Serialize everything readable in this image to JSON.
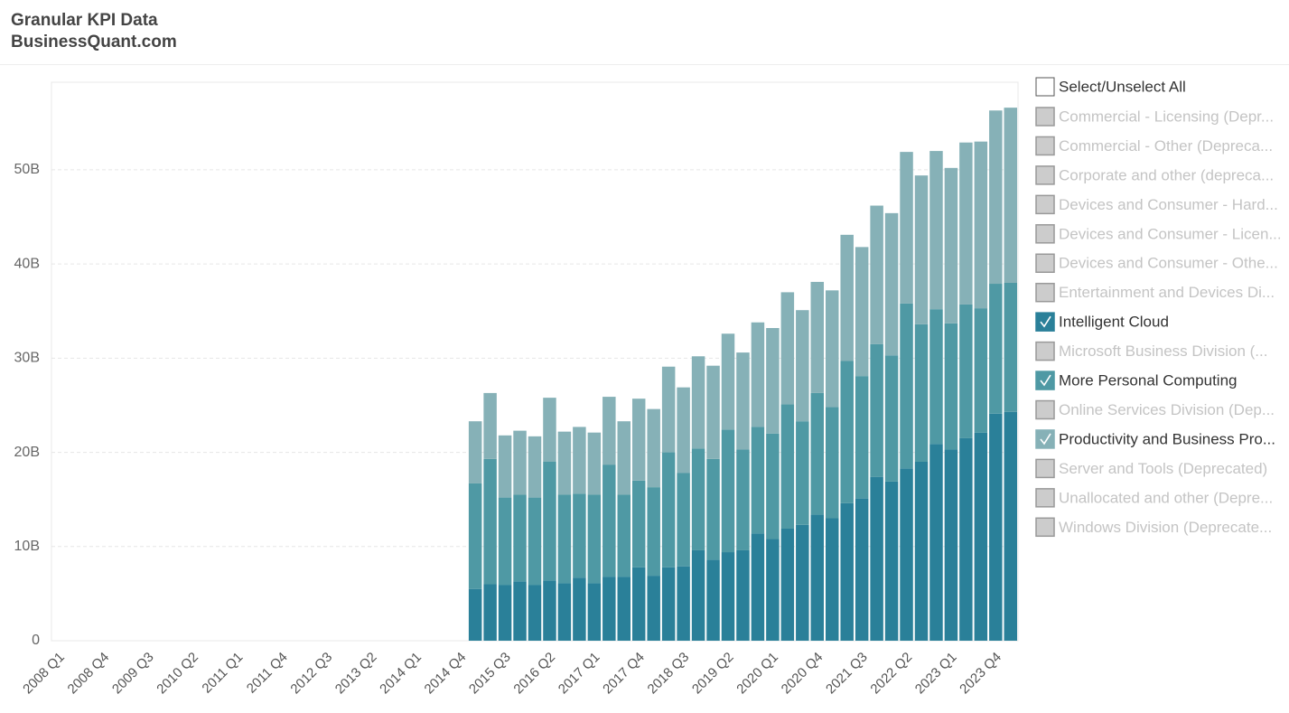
{
  "header": {
    "title": "Granular KPI Data",
    "subtitle": "BusinessQuant.com"
  },
  "filter_panel": {
    "select_all": "Select/Unselect All",
    "items": [
      {
        "label": "Commercial - Licensing (Depr...",
        "checked": false
      },
      {
        "label": "Commercial - Other (Depreca...",
        "checked": false
      },
      {
        "label": "Corporate and other (depreca...",
        "checked": false
      },
      {
        "label": "Devices and Consumer - Hard...",
        "checked": false
      },
      {
        "label": "Devices and Consumer - Licen...",
        "checked": false
      },
      {
        "label": "Devices and Consumer - Othe...",
        "checked": false
      },
      {
        "label": "Entertainment and Devices Di...",
        "checked": false
      },
      {
        "label": "Intelligent Cloud",
        "checked": true,
        "color": "#2a8099"
      },
      {
        "label": "Microsoft Business Division (...",
        "checked": false
      },
      {
        "label": "More Personal Computing",
        "checked": true,
        "color": "#4f99a4"
      },
      {
        "label": "Online Services Division (Dep...",
        "checked": false
      },
      {
        "label": "Productivity and Business Pro...",
        "checked": true,
        "color": "#86b1b7"
      },
      {
        "label": "Server and Tools (Deprecated)",
        "checked": false
      },
      {
        "label": "Unallocated and other (Depre...",
        "checked": false
      },
      {
        "label": "Windows Division (Deprecate...",
        "checked": false
      }
    ]
  },
  "chart_data": {
    "type": "stacked_bar",
    "categories": [
      "2008 Q1",
      null,
      null,
      "2008 Q4",
      null,
      null,
      "2009 Q3",
      null,
      null,
      "2010 Q2",
      null,
      null,
      "2011 Q1",
      null,
      null,
      "2011 Q4",
      null,
      null,
      "2012 Q3",
      null,
      null,
      "2013 Q2",
      null,
      null,
      "2014 Q1",
      null,
      null,
      "2014 Q4",
      null,
      null,
      "2015 Q3",
      null,
      null,
      "2016 Q2",
      null,
      null,
      "2017 Q1",
      null,
      null,
      "2017 Q4",
      null,
      null,
      "2018 Q3",
      null,
      null,
      "2019 Q2",
      null,
      null,
      "2020 Q1",
      null,
      null,
      "2020 Q4",
      null,
      null,
      "2021 Q3",
      null,
      null,
      "2022 Q2",
      null,
      null,
      "2023 Q1",
      null,
      null,
      "2023 Q4",
      null
    ],
    "series": [
      {
        "color": "#2a8099",
        "values": [
          null,
          null,
          null,
          null,
          null,
          null,
          null,
          null,
          null,
          null,
          null,
          null,
          null,
          null,
          null,
          null,
          null,
          null,
          null,
          null,
          null,
          null,
          null,
          null,
          null,
          null,
          null,
          null,
          5.5,
          6.0,
          5.9,
          6.3,
          5.9,
          6.4,
          6.1,
          6.7,
          6.1,
          6.8,
          6.8,
          7.8,
          6.9,
          7.8,
          7.9,
          9.6,
          8.6,
          9.4,
          9.6,
          11.4,
          10.8,
          11.9,
          12.3,
          13.4,
          13.0,
          14.6,
          15.1,
          17.4,
          16.9,
          18.3,
          19.0,
          20.9,
          20.3,
          21.5,
          22.1,
          24.1,
          24.3
        ]
      },
      {
        "color": "#4f99a4",
        "values": [
          null,
          null,
          null,
          null,
          null,
          null,
          null,
          null,
          null,
          null,
          null,
          null,
          null,
          null,
          null,
          null,
          null,
          null,
          null,
          null,
          null,
          null,
          null,
          null,
          null,
          null,
          null,
          null,
          11.2,
          13.3,
          9.3,
          9.2,
          9.3,
          12.6,
          9.4,
          8.9,
          9.4,
          11.9,
          8.7,
          9.2,
          9.4,
          12.2,
          9.9,
          10.8,
          10.7,
          13.0,
          10.7,
          11.3,
          11.2,
          13.2,
          11.0,
          12.9,
          11.8,
          15.1,
          13.0,
          14.1,
          13.4,
          17.5,
          14.6,
          14.3,
          13.4,
          14.2,
          13.2,
          13.8,
          13.7
        ]
      },
      {
        "color": "#86b1b7",
        "values": [
          null,
          null,
          null,
          null,
          null,
          null,
          null,
          null,
          null,
          null,
          null,
          null,
          null,
          null,
          null,
          null,
          null,
          null,
          null,
          null,
          null,
          null,
          null,
          null,
          null,
          null,
          null,
          null,
          6.6,
          7.0,
          6.6,
          6.8,
          6.5,
          6.8,
          6.7,
          7.1,
          6.6,
          7.2,
          7.8,
          8.7,
          8.3,
          9.1,
          9.1,
          9.8,
          9.9,
          10.2,
          10.3,
          11.1,
          11.2,
          11.9,
          11.8,
          11.8,
          12.4,
          13.4,
          13.7,
          14.7,
          15.1,
          16.1,
          15.8,
          16.8,
          16.5,
          17.2,
          17.7,
          18.4,
          18.6
        ]
      }
    ],
    "ylim": [
      0,
      59.3
    ],
    "yticks": [
      0,
      {
        "value": 10,
        "label": "10B"
      },
      {
        "value": 20,
        "label": "20B"
      },
      {
        "value": 30,
        "label": "30B"
      },
      {
        "value": 40,
        "label": "40B"
      },
      {
        "value": 50,
        "label": "50B"
      }
    ],
    "grid": true
  }
}
